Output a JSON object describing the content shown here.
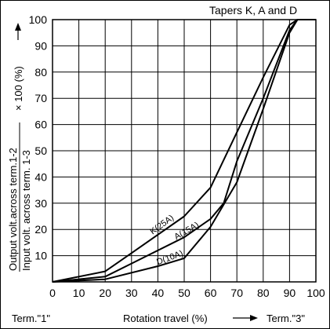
{
  "chart_data": {
    "type": "line",
    "title": "Tapers K, A and D",
    "xlabel": "Rotation travel (%)",
    "x_end_left": "Term.\"1\"",
    "x_end_right": "Term.\"3\"",
    "ylabel_numerator": "Output volt.across term.1-2",
    "ylabel_denominator": "Input volt. across term. 1-3",
    "ylabel_factor": "× 100 (%)",
    "xlim": [
      0,
      100
    ],
    "ylim": [
      0,
      100
    ],
    "xticks": [
      0,
      10,
      20,
      30,
      40,
      50,
      60,
      70,
      80,
      90,
      100
    ],
    "yticks": [
      10,
      20,
      30,
      40,
      50,
      60,
      70,
      80,
      90,
      100
    ],
    "grid": true,
    "series": [
      {
        "name": "K(25A)",
        "x": [
          0,
          20,
          30,
          50,
          60,
          70,
          80,
          90,
          93,
          100
        ],
        "y": [
          0,
          4,
          11,
          25,
          36,
          57,
          78,
          98,
          100,
          100
        ]
      },
      {
        "name": "A(15A)",
        "x": [
          0,
          20,
          30,
          50,
          60,
          65,
          70,
          80,
          90,
          93,
          100
        ],
        "y": [
          0,
          2,
          7,
          17,
          24,
          30,
          46,
          70,
          96,
          100,
          100
        ]
      },
      {
        "name": "D(10A)",
        "x": [
          0,
          20,
          40,
          50,
          60,
          70,
          80,
          90,
          93,
          100
        ],
        "y": [
          0,
          1,
          6,
          9,
          21,
          38,
          66,
          95,
          100,
          100
        ]
      }
    ]
  }
}
